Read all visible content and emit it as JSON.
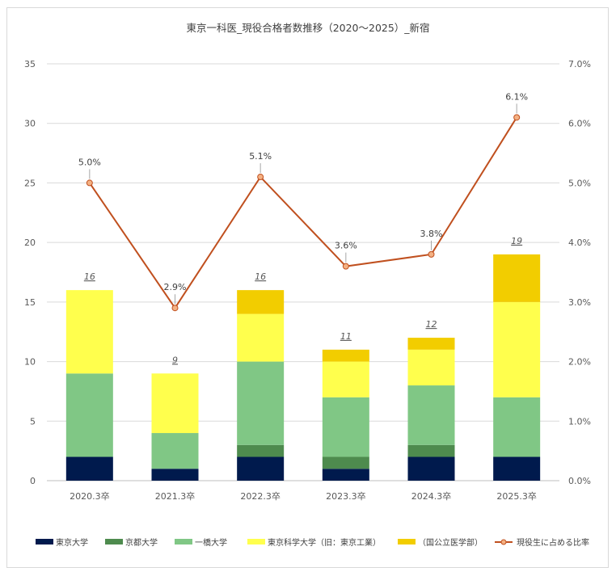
{
  "chart_data": {
    "type": "bar",
    "stacked": true,
    "title": "東京一科医_現役合格者数推移（2020～2025）_新宿",
    "categories": [
      "2020.3卒",
      "2021.3卒",
      "2022.3卒",
      "2023.3卒",
      "2024.3卒",
      "2025.3卒"
    ],
    "series": [
      {
        "name": "東京大学",
        "color": "#001a4d",
        "values": [
          2,
          1,
          2,
          1,
          2,
          2
        ]
      },
      {
        "name": "京都大学",
        "color": "#4e8b4e",
        "values": [
          0,
          0,
          1,
          1,
          1,
          0
        ]
      },
      {
        "name": "一橋大学",
        "color": "#80c785",
        "values": [
          7,
          3,
          7,
          5,
          5,
          5
        ]
      },
      {
        "name": "東京科学大学（旧：東京工業）",
        "color": "#ffff4d",
        "values": [
          7,
          5,
          4,
          3,
          3,
          8
        ]
      },
      {
        "name": "（国公立医学部）",
        "color": "#f2cd00",
        "values": [
          0,
          0,
          2,
          1,
          1,
          4
        ]
      }
    ],
    "totals": [
      "16",
      "9",
      "16",
      "11",
      "12",
      "19"
    ],
    "line_series": {
      "name": "現役生に占める比率",
      "color": "#c0501f",
      "values": [
        5.0,
        2.9,
        5.1,
        3.6,
        3.8,
        6.1
      ],
      "labels": [
        "5.0%",
        "2.9%",
        "5.1%",
        "3.6%",
        "3.8%",
        "6.1%"
      ]
    },
    "y_left": {
      "min": 0,
      "max": 35,
      "ticks": [
        "0",
        "5",
        "10",
        "15",
        "20",
        "25",
        "30",
        "35"
      ]
    },
    "y_right": {
      "min": 0,
      "max": 7,
      "ticks": [
        "0.0%",
        "1.0%",
        "2.0%",
        "3.0%",
        "4.0%",
        "5.0%",
        "6.0%",
        "7.0%"
      ]
    },
    "grid": true,
    "legend_position": "bottom"
  }
}
